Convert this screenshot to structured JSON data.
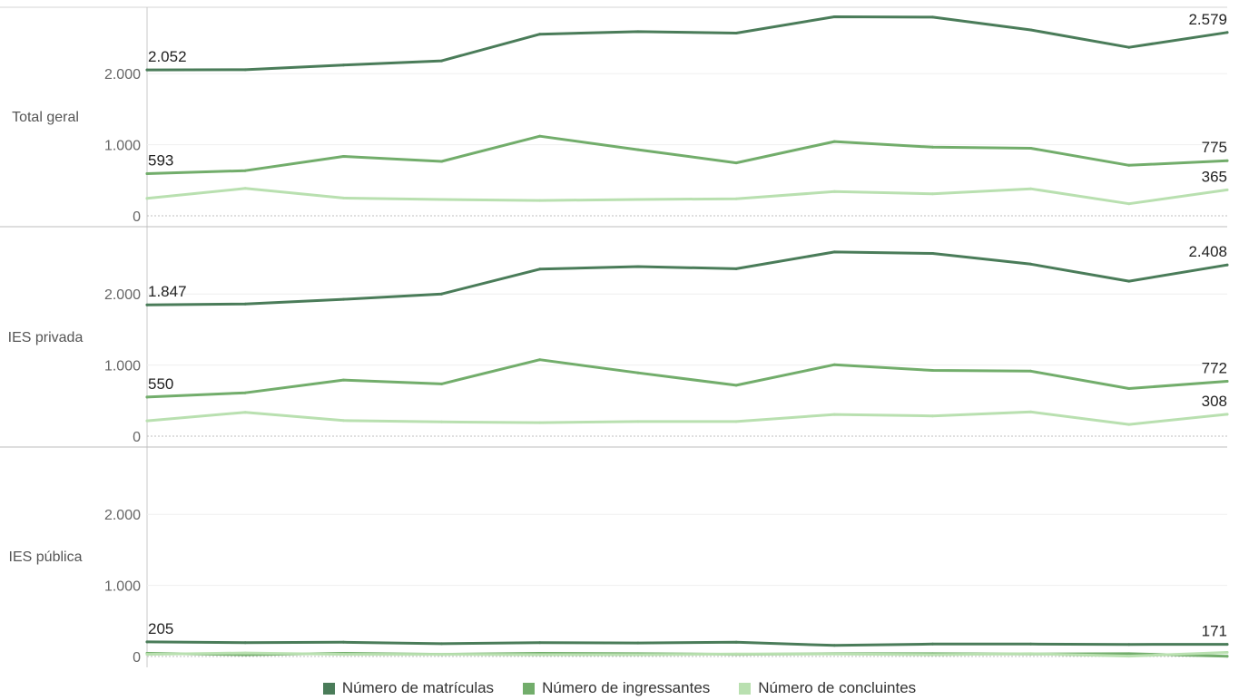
{
  "chart_data": {
    "type": "line",
    "colors": {
      "matriculas": "#4a7c59",
      "ingressantes": "#72ad6b",
      "concluintes": "#b9e0b0"
    },
    "legend": [
      "Número de matrículas",
      "Número de ingressantes",
      "Número de concluintes"
    ],
    "legend_position": "bottom",
    "ylim": [
      0,
      2800
    ],
    "y_ticks": [
      {
        "value": 0,
        "label": "0"
      },
      {
        "value": 1000,
        "label": "1.000"
      },
      {
        "value": 2000,
        "label": "2.000"
      }
    ],
    "panels": [
      {
        "label": "Total geral",
        "series": [
          {
            "key": "matriculas",
            "values": [
              2052,
              2055,
              2121,
              2180,
              2555,
              2590,
              2570,
              2800,
              2795,
              2615,
              2370,
              2579
            ],
            "labels": {
              "first": "2.052",
              "last": "2.579"
            }
          },
          {
            "key": "ingressantes",
            "values": [
              593,
              635,
              835,
              765,
              1120,
              930,
              745,
              1045,
              965,
              950,
              710,
              775
            ],
            "labels": {
              "first": "593",
              "last": "775"
            }
          },
          {
            "key": "concluintes",
            "values": [
              245,
              385,
              250,
              230,
              215,
              230,
              240,
              340,
              310,
              380,
              170,
              365
            ],
            "labels": {
              "last": "365"
            }
          }
        ]
      },
      {
        "label": "IES privada",
        "series": [
          {
            "key": "matriculas",
            "values": [
              1847,
              1860,
              1925,
              2000,
              2350,
              2385,
              2355,
              2590,
              2570,
              2420,
              2180,
              2408
            ],
            "labels": {
              "first": "1.847",
              "last": "2.408"
            }
          },
          {
            "key": "ingressantes",
            "values": [
              550,
              610,
              790,
              735,
              1075,
              890,
              715,
              1005,
              925,
              915,
              670,
              772
            ],
            "labels": {
              "first": "550",
              "last": "772"
            }
          },
          {
            "key": "concluintes",
            "values": [
              215,
              335,
              220,
              200,
              190,
              205,
              205,
              305,
              285,
              340,
              165,
              308
            ],
            "labels": {
              "last": "308"
            }
          }
        ]
      },
      {
        "label": "IES pública",
        "series": [
          {
            "key": "matriculas",
            "values": [
              205,
              195,
              200,
              180,
              195,
              190,
              200,
              155,
              175,
              175,
              170,
              171
            ],
            "labels": {
              "first": "205",
              "last": "171"
            }
          },
          {
            "key": "ingressantes",
            "values": [
              45,
              25,
              45,
              30,
              45,
              40,
              30,
              40,
              40,
              35,
              40,
              3
            ]
          },
          {
            "key": "concluintes",
            "values": [
              30,
              50,
              30,
              30,
              25,
              25,
              35,
              35,
              25,
              40,
              5,
              57
            ]
          }
        ]
      }
    ]
  }
}
